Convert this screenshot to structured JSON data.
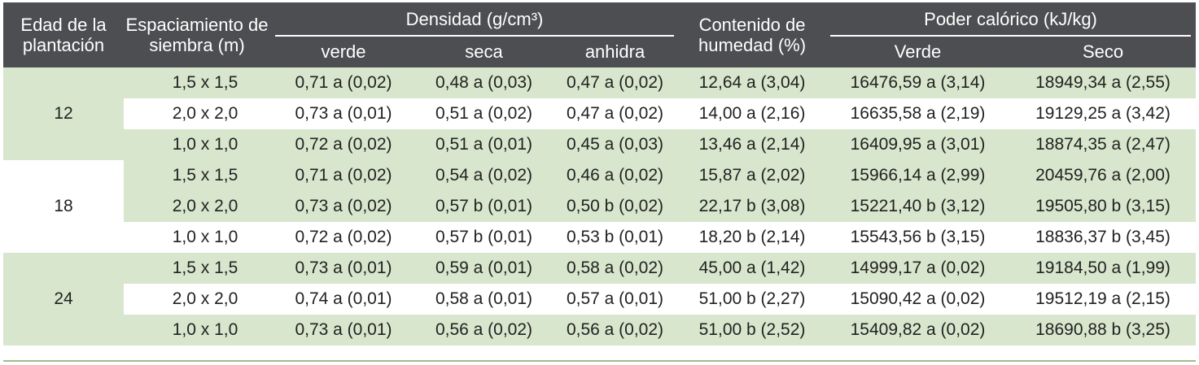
{
  "header": {
    "col_age": "Edad de la plantación",
    "col_spacing": "Espaciamiento de siembra (m)",
    "density_group": "Densidad (g/cm³)",
    "density_sub": [
      "verde",
      "seca",
      "anhidra"
    ],
    "moisture": "Contenido de humedad (%)",
    "calorific_group": "Poder calórico (kJ/kg)",
    "calorific_sub": [
      "Verde",
      "Seco"
    ]
  },
  "groups": [
    {
      "age": "12",
      "rows": [
        {
          "spacing": "1,5 x 1,5",
          "verde": "0,71 a (0,02)",
          "seca": "0,48 a (0,03)",
          "anhidra": "0,47 a (0,02)",
          "humedad": "12,64 a (3,04)",
          "pc_verde": "16476,59 a (3,14)",
          "pc_seco": "18949,34 a (2,55)"
        },
        {
          "spacing": "2,0 x 2,0",
          "verde": "0,73 a (0,01)",
          "seca": "0,51 a (0,02)",
          "anhidra": "0,47 a (0,02)",
          "humedad": "14,00 a (2,16)",
          "pc_verde": "16635,58 a (2,19)",
          "pc_seco": "19129,25 a (3,42)"
        },
        {
          "spacing": "1,0 x 1,0",
          "verde": "0,72 a (0,02)",
          "seca": "0,51 a (0,01)",
          "anhidra": "0,45 a (0,03)",
          "humedad": "13,46 a (2,14)",
          "pc_verde": "16409,95 a (3,01)",
          "pc_seco": "18874,35 a (2,47)"
        }
      ]
    },
    {
      "age": "18",
      "rows": [
        {
          "spacing": "1,5 x 1,5",
          "verde": "0,71 a (0,02)",
          "seca": "0,54 a (0,02)",
          "anhidra": "0,46 a (0,02)",
          "humedad": "15,87 a (2,02)",
          "pc_verde": "15966,14 a (2,99)",
          "pc_seco": "20459,76 a (2,00)"
        },
        {
          "spacing": "2,0 x 2,0",
          "verde": "0,73 a (0,02)",
          "seca": "0,57 b (0,01)",
          "anhidra": "0,50 b (0,02)",
          "humedad": "22,17 b (3,08)",
          "pc_verde": "15221,40 b (3,12)",
          "pc_seco": "19505,80 b (3,15)"
        },
        {
          "spacing": "1,0 x 1,0",
          "verde": "0,72 a (0,02)",
          "seca": "0,57 b (0,01)",
          "anhidra": "0,53 b (0,01)",
          "humedad": "18,20 b (2,14)",
          "pc_verde": "15543,56 b (3,15)",
          "pc_seco": "18836,37 b (3,45)"
        }
      ]
    },
    {
      "age": "24",
      "rows": [
        {
          "spacing": "1,5 x 1,5",
          "verde": "0,73 a (0,01)",
          "seca": "0,59 a (0,01)",
          "anhidra": "0,58 a (0,02)",
          "humedad": "45,00 a (1,42)",
          "pc_verde": "14999,17 a (0,02)",
          "pc_seco": "19184,50 a (1,99)"
        },
        {
          "spacing": "2,0 x 2,0",
          "verde": "0,74 a (0,01)",
          "seca": "0,58 a (0,01)",
          "anhidra": "0,57 a (0,01)",
          "humedad": "51,00 b (2,27)",
          "pc_verde": "15090,42 a (0,02)",
          "pc_seco": "19512,19 a (2,15)"
        },
        {
          "spacing": "1,0 x 1,0",
          "verde": "0,73 a (0,01)",
          "seca": "0,56 a (0,02)",
          "anhidra": "0,56 a (0,02)",
          "humedad": "51,00 b (2,52)",
          "pc_verde": "15409,82 a (0,02)",
          "pc_seco": "18690,88 b (3,25)"
        }
      ]
    }
  ],
  "colors": {
    "header_bg": "#4d4e51",
    "band_green": "#d7e6cc",
    "band_white": "#ffffff"
  }
}
